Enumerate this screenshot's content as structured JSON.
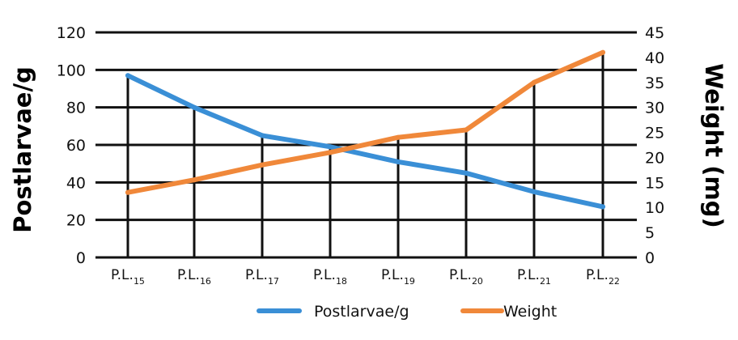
{
  "chart_data": {
    "type": "line",
    "categories": [
      {
        "main": "P.L.",
        "sub": "15"
      },
      {
        "main": "P.L.",
        "sub": "16"
      },
      {
        "main": "P.L.",
        "sub": "17"
      },
      {
        "main": "P.L.",
        "sub": "18"
      },
      {
        "main": "P.L.",
        "sub": "19"
      },
      {
        "main": "P.L.",
        "sub": "20"
      },
      {
        "main": "P.L.",
        "sub": "21"
      },
      {
        "main": "P.L.",
        "sub": "22"
      }
    ],
    "y_left": {
      "label": "Postlarvae/g",
      "lim": [
        0,
        120
      ],
      "ticks": [
        "0",
        "20",
        "40",
        "60",
        "80",
        "100",
        "120"
      ]
    },
    "y_right": {
      "label": "Weight (mg)",
      "lim": [
        0,
        45
      ],
      "ticks": [
        "0",
        "5",
        "10",
        "15",
        "20",
        "25",
        "30",
        "35",
        "40",
        "45"
      ]
    },
    "series": [
      {
        "name": "Postlarvae/g",
        "axis": "left",
        "color": "#3a8fd6",
        "values": [
          97,
          80,
          65,
          59,
          51,
          45,
          35,
          27
        ]
      },
      {
        "name": "Weight",
        "axis": "right",
        "color": "#f0883a",
        "values": [
          13,
          15.5,
          18.5,
          21,
          24,
          25.5,
          35,
          41
        ]
      }
    ],
    "grid": true,
    "legend_position": "bottom"
  }
}
